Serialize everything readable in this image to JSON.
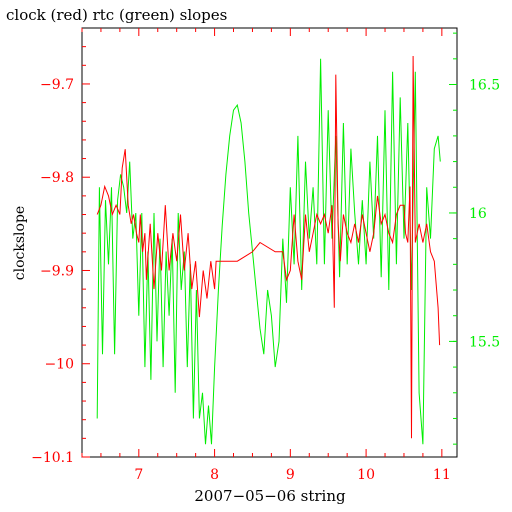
{
  "chart_data": {
    "type": "line",
    "title": "clock (red) rtc (green) slopes",
    "xlabel": "2007−05−06 string",
    "ylabel_left": "clockslope",
    "xlim": [
      6.25,
      11.2
    ],
    "ylim_left": [
      -10.1,
      -9.64
    ],
    "ylim_right": [
      15.05,
      16.72
    ],
    "x_ticks": [
      7,
      8,
      9,
      10,
      11
    ],
    "y_ticks_left": [
      -9.7,
      -9.8,
      -9.9,
      -10,
      -10.1
    ],
    "y_tick_labels_left": [
      "−9.7",
      "−9.8",
      "−9.9",
      "−10",
      "−10.1"
    ],
    "y_ticks_right": [
      16.5,
      16,
      15.5
    ],
    "grid": false,
    "colors": {
      "clock": "#ff0000",
      "rtc": "#00ee00",
      "axes": "#000000"
    },
    "series": [
      {
        "axis": "left",
        "color": "#ff0000",
        "x": [
          6.45,
          6.5,
          6.55,
          6.6,
          6.65,
          6.7,
          6.75,
          6.78,
          6.82,
          6.86,
          6.9,
          6.93,
          6.97,
          7.0,
          7.02,
          7.05,
          7.08,
          7.1,
          7.15,
          7.2,
          7.25,
          7.3,
          7.35,
          7.4,
          7.45,
          7.5,
          7.55,
          7.6,
          7.65,
          7.7,
          7.75,
          7.8,
          7.85,
          7.9,
          7.95,
          8.0,
          8.02,
          8.1,
          8.3,
          8.5,
          8.6,
          8.8,
          8.9,
          8.95,
          9.0,
          9.05,
          9.1,
          9.15,
          9.2,
          9.25,
          9.3,
          9.35,
          9.4,
          9.45,
          9.5,
          9.55,
          9.58,
          9.6,
          9.63,
          9.66,
          9.7,
          9.75,
          9.8,
          9.85,
          9.9,
          9.95,
          10.0,
          10.05,
          10.1,
          10.15,
          10.2,
          10.25,
          10.3,
          10.35,
          10.4,
          10.45,
          10.5,
          10.52,
          10.55,
          10.58,
          10.6,
          10.62,
          10.65,
          10.7,
          10.75,
          10.8,
          10.85,
          10.9,
          10.95,
          10.97
        ],
        "values": [
          -9.84,
          -9.83,
          -9.81,
          -9.82,
          -9.84,
          -9.83,
          -9.84,
          -9.79,
          -9.77,
          -9.83,
          -9.85,
          -9.84,
          -9.86,
          -9.87,
          -9.84,
          -9.88,
          -9.86,
          -9.91,
          -9.85,
          -9.92,
          -9.86,
          -9.9,
          -9.83,
          -9.9,
          -9.86,
          -9.89,
          -9.84,
          -9.9,
          -9.86,
          -9.92,
          -9.89,
          -9.95,
          -9.9,
          -9.93,
          -9.89,
          -9.92,
          -9.89,
          -9.89,
          -9.89,
          -9.88,
          -9.87,
          -9.88,
          -9.88,
          -9.91,
          -9.9,
          -9.84,
          -9.89,
          -9.91,
          -9.84,
          -9.88,
          -9.86,
          -9.84,
          -9.85,
          -9.84,
          -9.86,
          -9.83,
          -9.94,
          -9.69,
          -9.85,
          -9.89,
          -9.84,
          -9.86,
          -9.87,
          -9.85,
          -9.87,
          -9.84,
          -9.86,
          -9.88,
          -9.86,
          -9.82,
          -9.85,
          -9.84,
          -9.86,
          -9.87,
          -9.84,
          -9.83,
          -9.83,
          -9.86,
          -9.87,
          -9.81,
          -10.08,
          -9.67,
          -9.87,
          -9.85,
          -9.87,
          -9.85,
          -9.88,
          -9.89,
          -9.94,
          -9.98
        ]
      },
      {
        "axis": "right",
        "color": "#00ee00",
        "x": [
          6.45,
          6.48,
          6.52,
          6.56,
          6.6,
          6.64,
          6.68,
          6.72,
          6.76,
          6.8,
          6.84,
          6.88,
          6.92,
          6.96,
          7.0,
          7.04,
          7.08,
          7.12,
          7.16,
          7.2,
          7.24,
          7.28,
          7.32,
          7.36,
          7.4,
          7.44,
          7.48,
          7.52,
          7.56,
          7.6,
          7.64,
          7.68,
          7.72,
          7.76,
          7.8,
          7.84,
          7.88,
          7.92,
          7.96,
          8.0,
          8.05,
          8.1,
          8.15,
          8.2,
          8.25,
          8.3,
          8.35,
          8.4,
          8.45,
          8.5,
          8.55,
          8.6,
          8.65,
          8.7,
          8.75,
          8.8,
          8.85,
          8.9,
          8.95,
          9.0,
          9.05,
          9.1,
          9.15,
          9.2,
          9.25,
          9.3,
          9.35,
          9.4,
          9.45,
          9.5,
          9.55,
          9.6,
          9.65,
          9.7,
          9.75,
          9.8,
          9.85,
          9.9,
          9.95,
          10.0,
          10.05,
          10.1,
          10.15,
          10.2,
          10.25,
          10.3,
          10.35,
          10.4,
          10.45,
          10.5,
          10.55,
          10.6,
          10.65,
          10.7,
          10.75,
          10.8,
          10.85,
          10.9,
          10.95,
          10.98
        ],
        "values": [
          15.2,
          16.1,
          15.45,
          16.05,
          15.8,
          16.1,
          15.45,
          16.05,
          16.15,
          16.1,
          16.0,
          16.2,
          15.9,
          16.0,
          15.6,
          16.0,
          15.4,
          15.85,
          15.35,
          16.0,
          15.5,
          15.9,
          15.4,
          15.85,
          15.6,
          15.9,
          15.3,
          16.0,
          15.7,
          15.85,
          15.4,
          15.8,
          15.2,
          15.7,
          15.2,
          15.3,
          15.1,
          15.25,
          15.1,
          15.4,
          15.7,
          15.95,
          16.15,
          16.3,
          16.4,
          16.42,
          16.35,
          16.2,
          16.0,
          15.85,
          15.7,
          15.55,
          15.45,
          15.7,
          15.6,
          15.4,
          15.5,
          15.9,
          15.65,
          16.1,
          15.8,
          16.3,
          15.7,
          16.2,
          15.9,
          16.1,
          15.8,
          16.6,
          15.8,
          16.4,
          15.9,
          16.3,
          15.75,
          16.35,
          15.8,
          16.25,
          16.0,
          15.8,
          16.05,
          15.8,
          16.2,
          15.9,
          16.3,
          15.75,
          16.4,
          15.7,
          16.55,
          15.8,
          16.45,
          15.9,
          16.35,
          15.7,
          16.55,
          15.3,
          15.1,
          16.1,
          15.9,
          16.25,
          16.3,
          16.2
        ]
      }
    ]
  }
}
